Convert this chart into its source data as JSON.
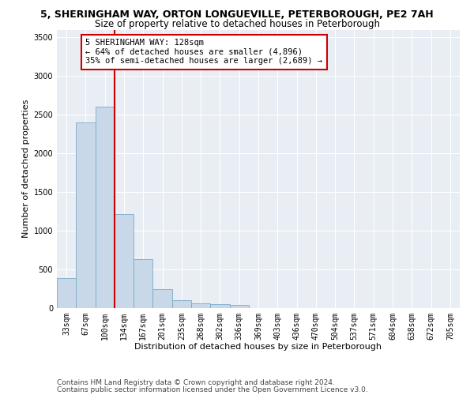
{
  "title1": "5, SHERINGHAM WAY, ORTON LONGUEVILLE, PETERBOROUGH, PE2 7AH",
  "title2": "Size of property relative to detached houses in Peterborough",
  "xlabel": "Distribution of detached houses by size in Peterborough",
  "ylabel": "Number of detached properties",
  "categories": [
    "33sqm",
    "67sqm",
    "100sqm",
    "134sqm",
    "167sqm",
    "201sqm",
    "235sqm",
    "268sqm",
    "302sqm",
    "336sqm",
    "369sqm",
    "403sqm",
    "436sqm",
    "470sqm",
    "504sqm",
    "537sqm",
    "571sqm",
    "604sqm",
    "638sqm",
    "672sqm",
    "705sqm"
  ],
  "values": [
    390,
    2400,
    2600,
    1220,
    630,
    250,
    100,
    65,
    55,
    40,
    0,
    0,
    0,
    0,
    0,
    0,
    0,
    0,
    0,
    0,
    0
  ],
  "bar_color": "#c8d8e8",
  "bar_edge_color": "#7aaac8",
  "vline_color": "#cc0000",
  "annotation_text": "5 SHERINGHAM WAY: 128sqm\n← 64% of detached houses are smaller (4,896)\n35% of semi-detached houses are larger (2,689) →",
  "annotation_box_color": "#ffffff",
  "annotation_box_edge_color": "#cc0000",
  "ylim": [
    0,
    3600
  ],
  "yticks": [
    0,
    500,
    1000,
    1500,
    2000,
    2500,
    3000,
    3500
  ],
  "background_color": "#e8eef4",
  "footer1": "Contains HM Land Registry data © Crown copyright and database right 2024.",
  "footer2": "Contains public sector information licensed under the Open Government Licence v3.0.",
  "title1_fontsize": 9,
  "title2_fontsize": 8.5,
  "xlabel_fontsize": 8,
  "ylabel_fontsize": 8,
  "tick_fontsize": 7,
  "annotation_fontsize": 7.5,
  "footer_fontsize": 6.5
}
